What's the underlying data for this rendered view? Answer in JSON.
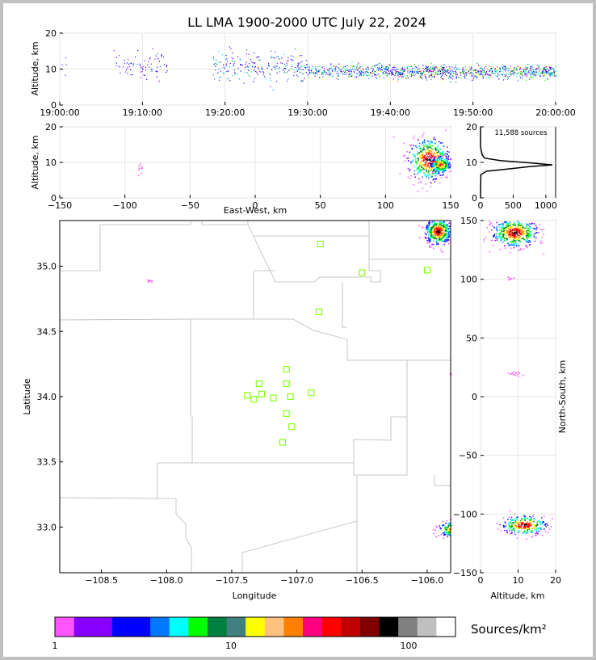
{
  "chart_data": {
    "type": "scatter",
    "title": "LL LMA 1900-2000 UTC July 22, 2024",
    "sources_count_label": "11,588 sources",
    "colorbar": {
      "label": "Sources/km²",
      "ticks": [
        "1",
        "10",
        "100"
      ],
      "colors": [
        "#ff55ff",
        "#8800ff",
        "#8800ff",
        "#0000ff",
        "#0000ff",
        "#0077ff",
        "#00ffff",
        "#00ff00",
        "#008040",
        "#408080",
        "#ffff00",
        "#ffc080",
        "#ff8000",
        "#ff0080",
        "#ff0000",
        "#c00000",
        "#800000",
        "#000000",
        "#808080",
        "#c0c0c0",
        "#ffffff"
      ]
    },
    "time_height": {
      "ylabel": "Altitude, km",
      "xticks": [
        "19:00:00",
        "19:10:00",
        "19:20:00",
        "19:30:00",
        "19:40:00",
        "19:50:00",
        "20:00:00"
      ],
      "xlim": [
        0,
        60
      ],
      "yticks": [
        "0",
        "10",
        "20"
      ],
      "ylim": [
        0,
        20
      ],
      "activity": [
        {
          "t0": 0,
          "t1": 1,
          "z": 10.5,
          "density": 0.1
        },
        {
          "t0": 6.5,
          "t1": 13,
          "z": 11,
          "density": 0.3
        },
        {
          "t0": 18.5,
          "t1": 30,
          "z": 11,
          "density": 0.5
        },
        {
          "t0": 30,
          "t1": 40,
          "z": 9.5,
          "density": 0.8
        },
        {
          "t0": 40,
          "t1": 60,
          "z": 9.3,
          "density": 1.0
        }
      ]
    },
    "ew_height": {
      "xlabel": "East-West, km",
      "ylabel": "Altitude, km",
      "xticks": [
        "−150",
        "−100",
        "−50",
        "0",
        "50",
        "100",
        "150"
      ],
      "xlim": [
        -150,
        150
      ],
      "yticks": [
        "0",
        "10",
        "20"
      ],
      "ylim": [
        0,
        20
      ],
      "clusters": [
        {
          "x": -88,
          "z": 8,
          "sx": 1,
          "sz": 1,
          "n": 10
        },
        {
          "x": 133,
          "z": 11,
          "sx": 8,
          "sz": 3,
          "n": 500
        },
        {
          "x": 142,
          "z": 9.5,
          "sx": 4,
          "sz": 1.2,
          "n": 220
        }
      ]
    },
    "altitude_histogram": {
      "xticks": [
        "0",
        "500",
        "1000"
      ],
      "xlim": [
        0,
        1150
      ],
      "yticks": [
        "0",
        "10",
        "20"
      ],
      "ylim": [
        0,
        20
      ],
      "profile": [
        {
          "z": 0,
          "count": 0
        },
        {
          "z": 6.5,
          "count": 5
        },
        {
          "z": 7.5,
          "count": 90
        },
        {
          "z": 8.3,
          "count": 500
        },
        {
          "z": 8.8,
          "count": 750
        },
        {
          "z": 9.3,
          "count": 1100
        },
        {
          "z": 9.8,
          "count": 800
        },
        {
          "z": 10.5,
          "count": 300
        },
        {
          "z": 11.2,
          "count": 60
        },
        {
          "z": 12,
          "count": 30
        },
        {
          "z": 13,
          "count": 15
        },
        {
          "z": 14.5,
          "count": 0
        },
        {
          "z": 20,
          "count": 0
        }
      ]
    },
    "plan_view": {
      "xlabel": "Longitude",
      "ylabel": "Latitude",
      "xticks": [
        "−108.5",
        "−108.0",
        "−107.5",
        "−107.0",
        "−106.5",
        "−106.0"
      ],
      "xtick_values": [
        -108.5,
        -108.0,
        -107.5,
        -107.0,
        -106.5,
        -106.0
      ],
      "xlim": [
        -108.82,
        -105.82
      ],
      "yticks": [
        "33.0",
        "33.5",
        "34.0",
        "34.5",
        "35.0"
      ],
      "ytick_values": [
        33.0,
        33.5,
        34.0,
        34.5,
        35.0
      ],
      "ylim": [
        32.65,
        35.35
      ],
      "stations": [
        {
          "lon": -106.82,
          "lat": 35.17
        },
        {
          "lon": -106.5,
          "lat": 34.95
        },
        {
          "lon": -106.0,
          "lat": 34.97
        },
        {
          "lon": -106.83,
          "lat": 34.65
        },
        {
          "lon": -107.08,
          "lat": 34.21
        },
        {
          "lon": -107.29,
          "lat": 34.1
        },
        {
          "lon": -107.08,
          "lat": 34.1
        },
        {
          "lon": -107.38,
          "lat": 34.01
        },
        {
          "lon": -107.33,
          "lat": 33.98
        },
        {
          "lon": -107.27,
          "lat": 34.02
        },
        {
          "lon": -107.18,
          "lat": 33.99
        },
        {
          "lon": -107.05,
          "lat": 34.0
        },
        {
          "lon": -106.89,
          "lat": 34.03
        },
        {
          "lon": -107.08,
          "lat": 33.87
        },
        {
          "lon": -107.04,
          "lat": 33.77
        },
        {
          "lon": -107.11,
          "lat": 33.65
        }
      ],
      "clusters": [
        {
          "lon": -105.92,
          "lat": 35.27,
          "sx": 0.05,
          "sy": 0.05,
          "n": 400
        },
        {
          "lon": -108.14,
          "lat": 34.89,
          "sx": 0.01,
          "sy": 0.01,
          "n": 8
        },
        {
          "lon": -105.81,
          "lat": 34.17,
          "sx": 0.01,
          "sy": 0.01,
          "n": 10
        },
        {
          "lon": -105.79,
          "lat": 32.99,
          "sx": 0.06,
          "sy": 0.03,
          "n": 280
        }
      ]
    },
    "ns_height": {
      "xlabel": "Altitude, km",
      "ylabel": "North-South, km",
      "xticks": [
        "0",
        "10",
        "20"
      ],
      "xlim": [
        0,
        20
      ],
      "yticks": [
        "−150",
        "−100",
        "−50",
        "0",
        "50",
        "100",
        "150"
      ],
      "ylim": [
        -150,
        150
      ],
      "clusters": [
        {
          "z": 9,
          "y": 140,
          "sz": 3,
          "sy": 6,
          "n": 500
        },
        {
          "z": 8,
          "y": 101,
          "sz": 0.5,
          "sy": 1,
          "n": 8
        },
        {
          "z": 9,
          "y": 20,
          "sz": 1.5,
          "sy": 1,
          "n": 15
        },
        {
          "z": 11.5,
          "y": -109,
          "sz": 3,
          "sy": 4,
          "n": 280
        }
      ]
    }
  }
}
